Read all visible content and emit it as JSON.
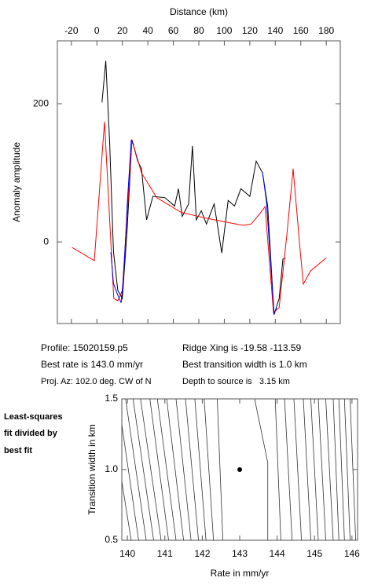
{
  "chart_data": [
    {
      "type": "line",
      "xlabel": "Distance (km)",
      "ylabel": "Anomaly amplitude",
      "xlim": [
        -31,
        191
      ],
      "ylim": [
        -118,
        291
      ],
      "xticks": [
        -20,
        0,
        20,
        40,
        60,
        80,
        100,
        120,
        140,
        160,
        180
      ],
      "yticks": [
        0,
        200
      ],
      "series": [
        {
          "color": "#000000",
          "x": [
            4,
            7,
            10,
            13,
            16.4,
            20,
            23.8,
            27.5,
            32,
            35,
            39,
            44,
            53.5,
            61,
            64,
            67,
            72,
            75,
            78,
            82,
            86,
            92,
            98,
            103,
            108,
            113,
            120,
            125,
            130,
            134,
            136.5,
            139,
            143,
            146,
            148
          ],
          "values": [
            202,
            262,
            145,
            -14,
            -70,
            -82,
            20,
            148,
            117,
            106,
            32,
            66,
            64,
            52,
            77,
            37,
            55,
            139,
            32,
            45,
            26,
            55,
            -16,
            60,
            52,
            77,
            66,
            117,
            100,
            52,
            -25,
            -105,
            -82,
            -25,
            -23
          ]
        },
        {
          "color": "#ff0000",
          "x": [
            -19.4,
            -2,
            6,
            13.3,
            16.4,
            20,
            27.5,
            35,
            47,
            66,
            84,
            109,
            115,
            121,
            127.5,
            132,
            138.6,
            143,
            149,
            154,
            159.6,
            162,
            167.6,
            180
          ],
          "values": [
            -8,
            -27,
            174,
            -82,
            -85,
            -70,
            148,
            100,
            64,
            43,
            35,
            26,
            24,
            26,
            40,
            51,
            -102,
            -95,
            9,
            106,
            -14,
            -61,
            -42,
            -23
          ]
        },
        {
          "color": "#0000ff",
          "x": [
            11,
            13,
            16,
            19,
            21,
            24,
            27,
            29,
            null,
            130,
            133,
            136,
            139,
            141
          ],
          "values": [
            -15,
            -60,
            -75,
            -88,
            -50,
            60,
            148,
            140,
            null,
            100,
            60,
            -20,
            -105,
            -95
          ]
        }
      ]
    },
    {
      "type": "contour",
      "xlabel": "Rate in mm/yr",
      "ylabel": "Transition width in km",
      "xlim": [
        139.85,
        146.15
      ],
      "ylim": [
        0.5,
        1.5
      ],
      "xticks": [
        140,
        141,
        142,
        143,
        144,
        145,
        146
      ],
      "yticks": [
        0.5,
        {
          "value": 1,
          "label": "1.0"
        },
        1.5
      ],
      "contour_color": "#333333",
      "point_color": "#000000",
      "contours": [
        {
          "x": [
            140.1,
            139.5
          ],
          "y": [
            0.5,
            1.5
          ]
        },
        {
          "x": [
            140.3,
            139.75
          ],
          "y": [
            0.5,
            1.5
          ]
        },
        {
          "x": [
            140.5,
            139.95
          ],
          "y": [
            0.5,
            1.5
          ]
        },
        {
          "x": [
            140.7,
            140.15
          ],
          "y": [
            0.5,
            1.5
          ]
        },
        {
          "x": [
            140.9,
            140.35
          ],
          "y": [
            0.5,
            1.5
          ]
        },
        {
          "x": [
            141.1,
            140.6
          ],
          "y": [
            0.5,
            1.5
          ]
        },
        {
          "x": [
            141.3,
            140.8
          ],
          "y": [
            0.5,
            1.5
          ]
        },
        {
          "x": [
            141.5,
            141.05
          ],
          "y": [
            0.5,
            1.5
          ]
        },
        {
          "x": [
            141.7,
            141.3
          ],
          "y": [
            0.5,
            1.5
          ]
        },
        {
          "x": [
            141.9,
            141.55
          ],
          "y": [
            0.5,
            1.5
          ]
        },
        {
          "x": [
            142.1,
            141.8
          ],
          "y": [
            0.5,
            1.5
          ]
        },
        {
          "x": [
            142.3,
            142.05
          ],
          "y": [
            0.5,
            1.5
          ]
        },
        {
          "x": [
            142.55,
            142.4
          ],
          "y": [
            0.5,
            1.5
          ]
        },
        {
          "x": [
            143.75,
            143.75,
            143.4
          ],
          "y": [
            0.5,
            1.05,
            1.5
          ]
        },
        {
          "x": [
            144.1,
            143.95
          ],
          "y": [
            0.5,
            1.5
          ]
        },
        {
          "x": [
            144.4,
            144.2
          ],
          "y": [
            0.5,
            1.5
          ]
        },
        {
          "x": [
            144.65,
            144.45
          ],
          "y": [
            0.5,
            1.5
          ]
        },
        {
          "x": [
            144.9,
            144.7
          ],
          "y": [
            0.5,
            1.5
          ]
        },
        {
          "x": [
            145.1,
            144.9
          ],
          "y": [
            0.5,
            1.5
          ]
        },
        {
          "x": [
            145.3,
            145.1
          ],
          "y": [
            0.5,
            1.5
          ]
        },
        {
          "x": [
            145.5,
            145.3
          ],
          "y": [
            0.5,
            1.5
          ]
        },
        {
          "x": [
            145.65,
            145.5
          ],
          "y": [
            0.5,
            1.5
          ]
        },
        {
          "x": [
            145.8,
            145.65
          ],
          "y": [
            0.5,
            1.5
          ]
        },
        {
          "x": [
            145.95,
            145.8
          ],
          "y": [
            0.5,
            1.5
          ]
        },
        {
          "x": [
            146.1,
            145.95
          ],
          "y": [
            0.5,
            1.5
          ]
        }
      ],
      "best_fit": {
        "x": 143.0,
        "y": 1.0
      }
    }
  ],
  "info": [
    "Profile: 15020159.p5",
    "Best rate is 143.0 mm/yr",
    "Proj. Az: 102.0 deg. CW of N",
    "Ridge Xing is -19.58 -113.59",
    "Best transition width is 1.0 km",
    "Depth to source is   3.15 km"
  ],
  "side_note": [
    "Least-squares",
    "fit divided by",
    "best fit"
  ]
}
